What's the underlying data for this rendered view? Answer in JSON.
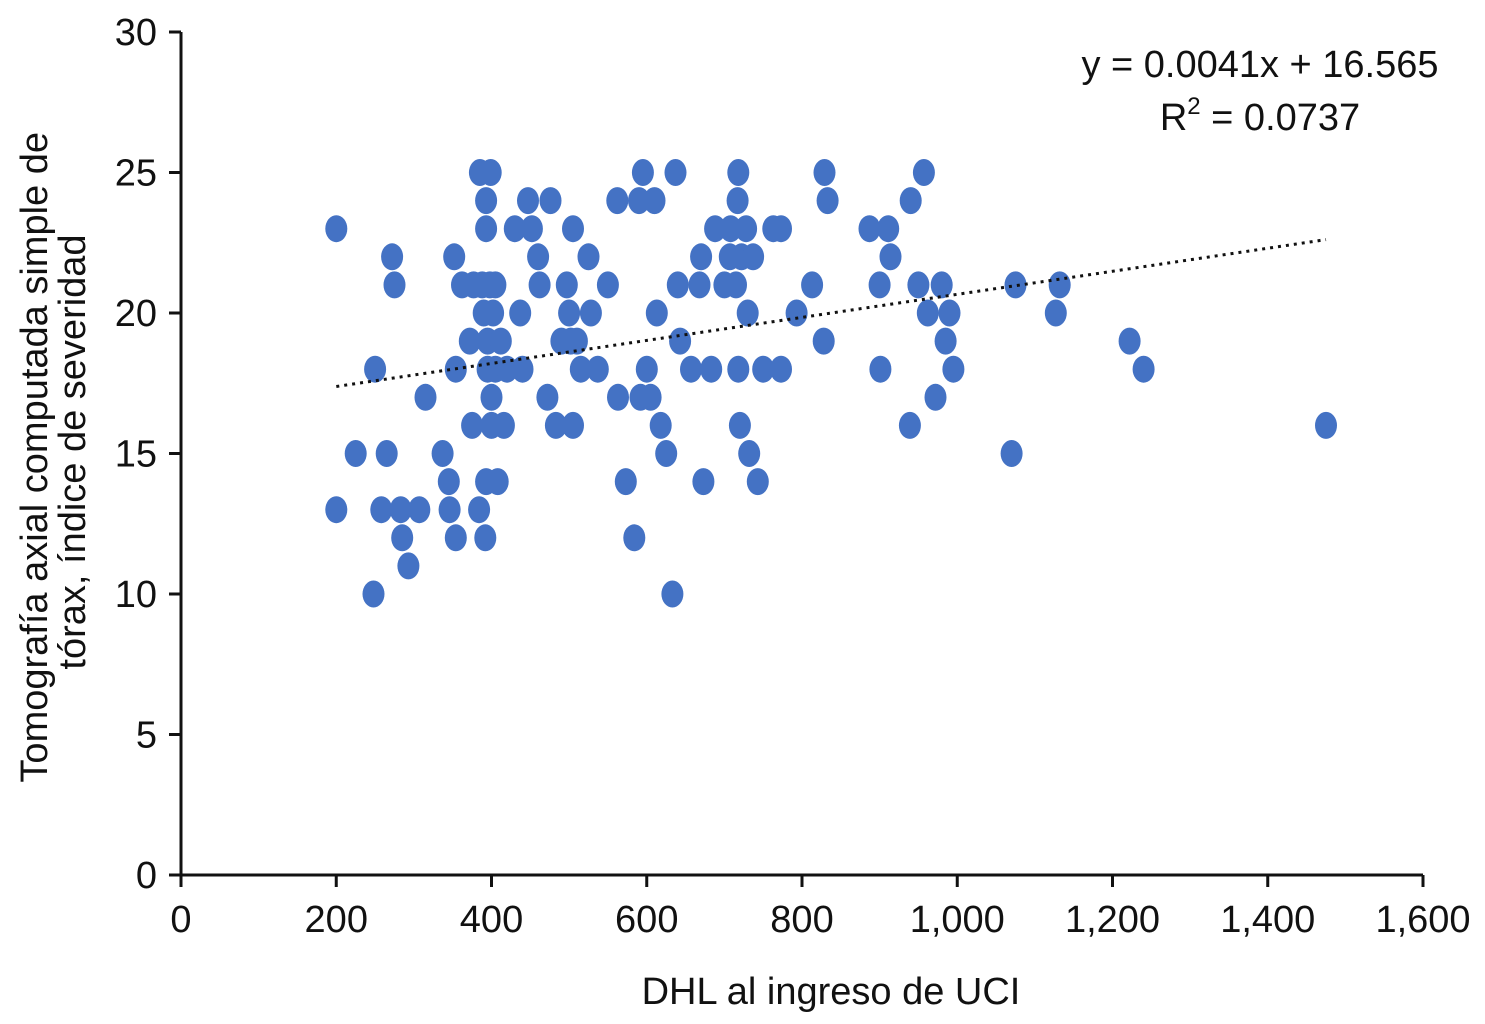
{
  "chart_data": {
    "type": "scatter",
    "title": "",
    "xlabel": "DHL al ingreso de UCI",
    "ylabel_lines": [
      "Tomografía axial computada simple de",
      "tórax, índice de severidad"
    ],
    "xlim": [
      0,
      1600
    ],
    "ylim": [
      0,
      30
    ],
    "xticks": [
      0,
      200,
      400,
      600,
      800,
      1000,
      1200,
      1400,
      1600
    ],
    "xtick_labels": [
      "0",
      "200",
      "400",
      "600",
      "800",
      "1,000",
      "1,200",
      "1,400",
      "1,600"
    ],
    "yticks": [
      0,
      5,
      10,
      15,
      20,
      25,
      30
    ],
    "ytick_labels": [
      "0",
      "5",
      "10",
      "15",
      "20",
      "25",
      "30"
    ],
    "grid": false,
    "marker_color": "#4472C4",
    "trendline": {
      "type": "linear",
      "slope": 0.0041,
      "intercept": 16.565,
      "x_range": [
        200,
        1475
      ],
      "style": "dotted",
      "equation_text": "y = 0.0041x + 16.565",
      "r2_prefix": "R",
      "r2_sup": "2",
      "r2_value": " = 0.0737"
    },
    "points": [
      [
        200,
        23
      ],
      [
        200,
        13
      ],
      [
        225,
        15
      ],
      [
        248,
        10
      ],
      [
        250,
        18
      ],
      [
        258,
        13
      ],
      [
        265,
        15
      ],
      [
        272,
        22
      ],
      [
        275,
        21
      ],
      [
        283,
        13
      ],
      [
        285,
        12
      ],
      [
        293,
        11
      ],
      [
        307,
        13
      ],
      [
        315,
        17
      ],
      [
        337,
        15
      ],
      [
        345,
        14
      ],
      [
        346,
        13
      ],
      [
        352,
        22
      ],
      [
        354,
        12
      ],
      [
        354,
        18
      ],
      [
        362,
        21
      ],
      [
        372,
        19
      ],
      [
        375,
        16
      ],
      [
        377,
        21
      ],
      [
        384,
        13
      ],
      [
        385,
        25
      ],
      [
        388,
        21
      ],
      [
        390,
        20
      ],
      [
        392,
        12
      ],
      [
        393,
        24
      ],
      [
        393,
        23
      ],
      [
        393,
        14
      ],
      [
        395,
        19
      ],
      [
        395,
        18
      ],
      [
        398,
        21
      ],
      [
        399,
        25
      ],
      [
        400,
        17
      ],
      [
        400,
        16
      ],
      [
        402,
        20
      ],
      [
        405,
        18
      ],
      [
        405,
        21
      ],
      [
        408,
        14
      ],
      [
        412,
        19
      ],
      [
        416,
        16
      ],
      [
        420,
        18
      ],
      [
        430,
        23
      ],
      [
        437,
        20
      ],
      [
        440,
        18
      ],
      [
        447,
        24
      ],
      [
        452,
        23
      ],
      [
        460,
        22
      ],
      [
        462,
        21
      ],
      [
        472,
        17
      ],
      [
        476,
        24
      ],
      [
        483,
        16
      ],
      [
        490,
        19
      ],
      [
        497,
        21
      ],
      [
        500,
        20
      ],
      [
        502,
        19
      ],
      [
        505,
        16
      ],
      [
        505,
        23
      ],
      [
        510,
        19
      ],
      [
        515,
        18
      ],
      [
        525,
        22
      ],
      [
        528,
        20
      ],
      [
        537,
        18
      ],
      [
        550,
        21
      ],
      [
        562,
        24
      ],
      [
        563,
        17
      ],
      [
        573,
        14
      ],
      [
        584,
        12
      ],
      [
        590,
        24
      ],
      [
        592,
        17
      ],
      [
        595,
        25
      ],
      [
        600,
        18
      ],
      [
        605,
        17
      ],
      [
        610,
        24
      ],
      [
        613,
        20
      ],
      [
        618,
        16
      ],
      [
        625,
        15
      ],
      [
        633,
        10
      ],
      [
        637,
        25
      ],
      [
        640,
        21
      ],
      [
        643,
        19
      ],
      [
        657,
        18
      ],
      [
        668,
        21
      ],
      [
        670,
        22
      ],
      [
        673,
        14
      ],
      [
        683,
        18
      ],
      [
        688,
        23
      ],
      [
        700,
        21
      ],
      [
        707,
        22
      ],
      [
        708,
        23
      ],
      [
        715,
        21
      ],
      [
        717,
        24
      ],
      [
        718,
        25
      ],
      [
        718,
        18
      ],
      [
        720,
        16
      ],
      [
        722,
        22
      ],
      [
        728,
        23
      ],
      [
        730,
        20
      ],
      [
        732,
        15
      ],
      [
        737,
        22
      ],
      [
        743,
        14
      ],
      [
        750,
        18
      ],
      [
        763,
        23
      ],
      [
        773,
        23
      ],
      [
        773,
        18
      ],
      [
        793,
        20
      ],
      [
        813,
        21
      ],
      [
        828,
        19
      ],
      [
        829,
        25
      ],
      [
        833,
        24
      ],
      [
        887,
        23
      ],
      [
        900,
        21
      ],
      [
        901,
        18
      ],
      [
        911,
        23
      ],
      [
        914,
        22
      ],
      [
        939,
        16
      ],
      [
        940,
        24
      ],
      [
        950,
        21
      ],
      [
        957,
        25
      ],
      [
        962,
        20
      ],
      [
        972,
        17
      ],
      [
        980,
        21
      ],
      [
        985,
        19
      ],
      [
        990,
        20
      ],
      [
        995,
        18
      ],
      [
        1070,
        15
      ],
      [
        1075,
        21
      ],
      [
        1127,
        20
      ],
      [
        1132,
        21
      ],
      [
        1222,
        19
      ],
      [
        1240,
        18
      ],
      [
        1475,
        16
      ]
    ]
  }
}
